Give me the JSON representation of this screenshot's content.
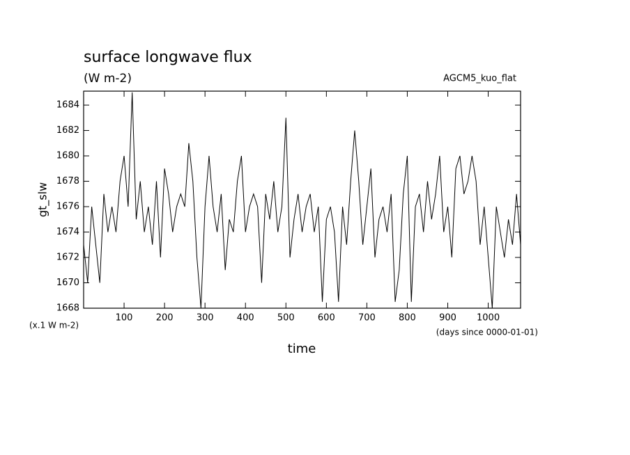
{
  "chart_data": {
    "type": "line",
    "title": "surface longwave flux",
    "subtitle": "(W m-2)",
    "annotation": "AGCM5_kuo_flat",
    "y_label": "gt_slw",
    "x_label": "time",
    "y_unit_note": "(x.1 W m-2)",
    "x_unit_note": "(days since 0000-01-01)",
    "x": [
      0,
      10,
      20,
      30,
      40,
      50,
      60,
      70,
      80,
      90,
      100,
      110,
      120,
      130,
      140,
      150,
      160,
      170,
      180,
      190,
      200,
      210,
      220,
      230,
      240,
      250,
      260,
      270,
      280,
      290,
      300,
      310,
      320,
      330,
      340,
      350,
      360,
      370,
      380,
      390,
      400,
      410,
      420,
      430,
      440,
      450,
      460,
      470,
      480,
      490,
      500,
      510,
      520,
      530,
      540,
      550,
      560,
      570,
      580,
      590,
      600,
      610,
      620,
      630,
      640,
      650,
      660,
      670,
      680,
      690,
      700,
      710,
      720,
      730,
      740,
      750,
      760,
      770,
      780,
      790,
      800,
      810,
      820,
      830,
      840,
      850,
      860,
      870,
      880,
      890,
      900,
      910,
      920,
      930,
      940,
      950,
      960,
      970,
      980,
      990,
      1000,
      1010,
      1020,
      1030,
      1040,
      1050,
      1060,
      1070,
      1080
    ],
    "series": [
      {
        "name": "gt_slw",
        "color": "#000000",
        "values": [
          1673,
          1670,
          1676,
          1673,
          1670,
          1677,
          1674,
          1676,
          1674,
          1678,
          1680,
          1676,
          1685,
          1675,
          1678,
          1674,
          1676,
          1673,
          1678,
          1672,
          1679,
          1677,
          1674,
          1676,
          1677,
          1676,
          1681,
          1678,
          1672,
          1668,
          1676,
          1680,
          1676,
          1674,
          1677,
          1671,
          1675,
          1674,
          1678,
          1680,
          1674,
          1676,
          1677,
          1676,
          1670,
          1677,
          1675,
          1678,
          1674,
          1676,
          1683,
          1672,
          1675,
          1677,
          1674,
          1676,
          1677,
          1674,
          1676,
          1668.5,
          1675,
          1676,
          1674,
          1668.5,
          1676,
          1673,
          1678,
          1682,
          1678,
          1673,
          1676,
          1679,
          1672,
          1675,
          1676,
          1674,
          1677,
          1668.5,
          1671,
          1677,
          1680,
          1668.5,
          1676,
          1677,
          1674,
          1678,
          1675,
          1677,
          1680,
          1674,
          1676,
          1672,
          1679,
          1680,
          1677,
          1678,
          1680,
          1678,
          1673,
          1676,
          1672,
          1668,
          1676,
          1674,
          1672,
          1675,
          1673,
          1677,
          1673
        ]
      }
    ],
    "xlim": [
      0,
      1080
    ],
    "ylim": [
      1668,
      1685.1
    ],
    "xticks": [
      100,
      200,
      300,
      400,
      500,
      600,
      700,
      800,
      900,
      1000
    ],
    "yticks": [
      1668,
      1670,
      1672,
      1674,
      1676,
      1678,
      1680,
      1682,
      1684
    ],
    "grid": false
  }
}
